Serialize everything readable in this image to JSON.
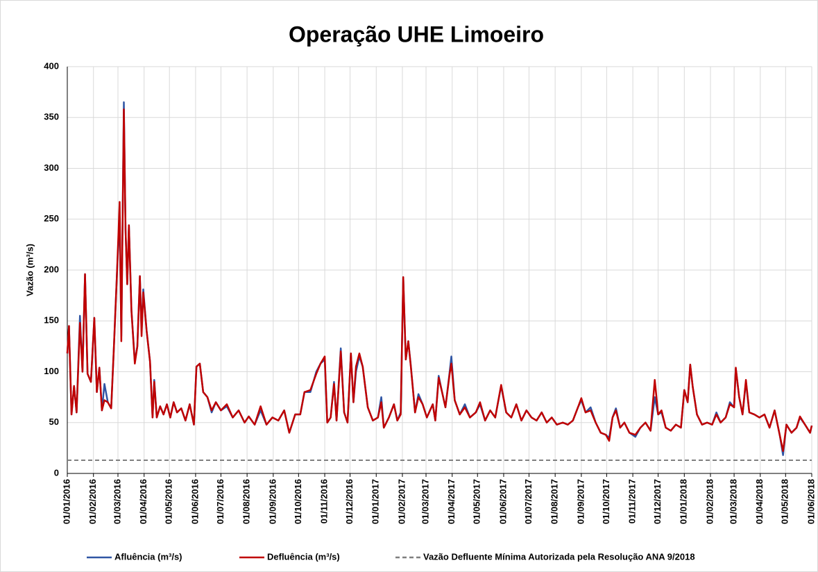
{
  "chart_data": {
    "type": "line",
    "title": "Operação UHE Limoeiro",
    "y_label": "Vazão (m³/s)",
    "ylim": [
      0,
      400
    ],
    "yticks": [
      0,
      50,
      100,
      150,
      200,
      250,
      300,
      350,
      400
    ],
    "xlim": [
      "2016-01-01",
      "2018-06-01"
    ],
    "xticks": [
      {
        "value": "2016-01-01",
        "label": "01/01/2016"
      },
      {
        "value": "2016-02-01",
        "label": "01/02/2016"
      },
      {
        "value": "2016-03-01",
        "label": "01/03/2016"
      },
      {
        "value": "2016-04-01",
        "label": "01/04/2016"
      },
      {
        "value": "2016-05-01",
        "label": "01/05/2016"
      },
      {
        "value": "2016-06-01",
        "label": "01/06/2016"
      },
      {
        "value": "2016-07-01",
        "label": "01/07/2016"
      },
      {
        "value": "2016-08-01",
        "label": "01/08/2016"
      },
      {
        "value": "2016-09-01",
        "label": "01/09/2016"
      },
      {
        "value": "2016-10-01",
        "label": "01/10/2016"
      },
      {
        "value": "2016-11-01",
        "label": "01/11/2016"
      },
      {
        "value": "2016-12-01",
        "label": "01/12/2016"
      },
      {
        "value": "2017-01-01",
        "label": "01/01/2017"
      },
      {
        "value": "2017-02-01",
        "label": "01/02/2017"
      },
      {
        "value": "2017-03-01",
        "label": "01/03/2017"
      },
      {
        "value": "2017-04-01",
        "label": "01/04/2017"
      },
      {
        "value": "2017-05-01",
        "label": "01/05/2017"
      },
      {
        "value": "2017-06-01",
        "label": "01/06/2017"
      },
      {
        "value": "2017-07-01",
        "label": "01/07/2017"
      },
      {
        "value": "2017-08-01",
        "label": "01/08/2017"
      },
      {
        "value": "2017-09-01",
        "label": "01/09/2017"
      },
      {
        "value": "2017-10-01",
        "label": "01/10/2017"
      },
      {
        "value": "2017-11-01",
        "label": "01/11/2017"
      },
      {
        "value": "2017-12-01",
        "label": "01/12/2017"
      },
      {
        "value": "2018-01-01",
        "label": "01/01/2018"
      },
      {
        "value": "2018-02-01",
        "label": "01/02/2018"
      },
      {
        "value": "2018-03-01",
        "label": "01/03/2018"
      },
      {
        "value": "2018-04-01",
        "label": "01/04/2018"
      },
      {
        "value": "2018-05-01",
        "label": "01/05/2018"
      },
      {
        "value": "2018-06-01",
        "label": "01/06/2018"
      }
    ],
    "grid": true,
    "x": [
      "2016-01-01",
      "2016-01-03",
      "2016-01-06",
      "2016-01-09",
      "2016-01-12",
      "2016-01-16",
      "2016-01-19",
      "2016-01-22",
      "2016-01-25",
      "2016-01-29",
      "2016-02-02",
      "2016-02-05",
      "2016-02-08",
      "2016-02-11",
      "2016-02-14",
      "2016-02-18",
      "2016-02-22",
      "2016-02-25",
      "2016-02-29",
      "2016-03-03",
      "2016-03-05",
      "2016-03-08",
      "2016-03-10",
      "2016-03-12",
      "2016-03-14",
      "2016-03-17",
      "2016-03-21",
      "2016-03-24",
      "2016-03-27",
      "2016-03-29",
      "2016-03-31",
      "2016-04-04",
      "2016-04-08",
      "2016-04-11",
      "2016-04-13",
      "2016-04-16",
      "2016-04-20",
      "2016-04-24",
      "2016-04-28",
      "2016-05-02",
      "2016-05-06",
      "2016-05-10",
      "2016-05-15",
      "2016-05-20",
      "2016-05-25",
      "2016-05-30",
      "2016-06-02",
      "2016-06-06",
      "2016-06-10",
      "2016-06-15",
      "2016-06-20",
      "2016-06-25",
      "2016-07-01",
      "2016-07-08",
      "2016-07-15",
      "2016-07-22",
      "2016-07-29",
      "2016-08-03",
      "2016-08-10",
      "2016-08-17",
      "2016-08-24",
      "2016-08-31",
      "2016-09-07",
      "2016-09-14",
      "2016-09-20",
      "2016-09-27",
      "2016-10-03",
      "2016-10-08",
      "2016-10-15",
      "2016-10-22",
      "2016-10-27",
      "2016-11-01",
      "2016-11-04",
      "2016-11-08",
      "2016-11-12",
      "2016-11-15",
      "2016-11-20",
      "2016-11-24",
      "2016-11-28",
      "2016-12-02",
      "2016-12-05",
      "2016-12-08",
      "2016-12-12",
      "2016-12-16",
      "2016-12-22",
      "2016-12-28",
      "2017-01-03",
      "2017-01-07",
      "2017-01-10",
      "2017-01-16",
      "2017-01-22",
      "2017-01-26",
      "2017-01-30",
      "2017-02-02",
      "2017-02-05",
      "2017-02-08",
      "2017-02-11",
      "2017-02-16",
      "2017-02-20",
      "2017-02-25",
      "2017-03-02",
      "2017-03-09",
      "2017-03-12",
      "2017-03-16",
      "2017-03-20",
      "2017-03-24",
      "2017-03-29",
      "2017-03-31",
      "2017-04-04",
      "2017-04-10",
      "2017-04-16",
      "2017-04-22",
      "2017-04-29",
      "2017-05-04",
      "2017-05-10",
      "2017-05-16",
      "2017-05-22",
      "2017-05-29",
      "2017-06-04",
      "2017-06-10",
      "2017-06-16",
      "2017-06-22",
      "2017-06-28",
      "2017-07-04",
      "2017-07-10",
      "2017-07-16",
      "2017-07-22",
      "2017-07-28",
      "2017-08-03",
      "2017-08-10",
      "2017-08-16",
      "2017-08-22",
      "2017-08-28",
      "2017-09-01",
      "2017-09-06",
      "2017-09-12",
      "2017-09-18",
      "2017-09-24",
      "2017-09-30",
      "2017-10-04",
      "2017-10-08",
      "2017-10-12",
      "2017-10-17",
      "2017-10-22",
      "2017-10-28",
      "2017-11-04",
      "2017-11-10",
      "2017-11-16",
      "2017-11-22",
      "2017-11-27",
      "2017-12-01",
      "2017-12-05",
      "2017-12-10",
      "2017-12-16",
      "2017-12-22",
      "2017-12-28",
      "2018-01-01",
      "2018-01-05",
      "2018-01-08",
      "2018-01-11",
      "2018-01-16",
      "2018-01-22",
      "2018-01-28",
      "2018-02-03",
      "2018-02-08",
      "2018-02-13",
      "2018-02-19",
      "2018-02-24",
      "2018-03-01",
      "2018-03-03",
      "2018-03-07",
      "2018-03-11",
      "2018-03-15",
      "2018-03-19",
      "2018-03-25",
      "2018-03-31",
      "2018-04-06",
      "2018-04-12",
      "2018-04-18",
      "2018-04-24",
      "2018-04-28",
      "2018-05-02",
      "2018-05-08",
      "2018-05-14",
      "2018-05-18",
      "2018-05-24",
      "2018-05-30",
      "2018-06-01"
    ],
    "series": [
      {
        "name": "Afluência (m³/s)",
        "color": "#2f55a4",
        "values": [
          118,
          145,
          58,
          86,
          60,
          155,
          100,
          196,
          98,
          90,
          153,
          80,
          104,
          62,
          88,
          70,
          64,
          120,
          200,
          252,
          135,
          365,
          240,
          186,
          244,
          160,
          110,
          125,
          194,
          140,
          181,
          140,
          110,
          55,
          92,
          55,
          66,
          58,
          68,
          55,
          70,
          60,
          64,
          52,
          68,
          48,
          105,
          108,
          80,
          75,
          60,
          70,
          62,
          66,
          55,
          62,
          50,
          56,
          48,
          62,
          48,
          55,
          52,
          62,
          40,
          58,
          58,
          80,
          80,
          100,
          108,
          112,
          50,
          55,
          90,
          52,
          123,
          60,
          50,
          118,
          70,
          100,
          115,
          105,
          65,
          52,
          55,
          75,
          45,
          55,
          68,
          52,
          60,
          193,
          112,
          130,
          106,
          60,
          78,
          68,
          55,
          68,
          52,
          96,
          80,
          65,
          100,
          115,
          72,
          58,
          68,
          55,
          60,
          68,
          52,
          62,
          55,
          86,
          60,
          55,
          68,
          52,
          62,
          55,
          52,
          60,
          50,
          55,
          48,
          50,
          48,
          52,
          65,
          72,
          60,
          65,
          50,
          40,
          38,
          35,
          55,
          64,
          45,
          50,
          40,
          36,
          45,
          50,
          42,
          75,
          58,
          60,
          45,
          42,
          48,
          45,
          82,
          70,
          107,
          85,
          58,
          48,
          50,
          48,
          60,
          50,
          55,
          70,
          65,
          103,
          75,
          58,
          90,
          60,
          58,
          55,
          58,
          45,
          62,
          38,
          18,
          48,
          40,
          45,
          55,
          48,
          40,
          47
        ]
      },
      {
        "name": "Defluência (m³/s)",
        "color": "#c00000",
        "values": [
          118,
          145,
          58,
          86,
          60,
          148,
          100,
          196,
          98,
          90,
          153,
          80,
          104,
          62,
          72,
          70,
          64,
          120,
          200,
          267,
          130,
          358,
          240,
          186,
          244,
          160,
          108,
          125,
          194,
          135,
          178,
          140,
          110,
          55,
          90,
          55,
          66,
          58,
          68,
          55,
          70,
          60,
          64,
          52,
          68,
          48,
          105,
          108,
          80,
          75,
          62,
          70,
          62,
          68,
          55,
          62,
          50,
          56,
          48,
          66,
          48,
          55,
          52,
          62,
          40,
          58,
          58,
          80,
          82,
          98,
          108,
          115,
          50,
          55,
          88,
          52,
          120,
          60,
          50,
          118,
          70,
          105,
          118,
          105,
          65,
          52,
          55,
          70,
          45,
          55,
          68,
          52,
          58,
          193,
          112,
          130,
          105,
          60,
          75,
          68,
          55,
          68,
          52,
          94,
          80,
          65,
          98,
          108,
          72,
          58,
          65,
          55,
          60,
          70,
          52,
          62,
          55,
          87,
          60,
          55,
          68,
          52,
          62,
          55,
          52,
          60,
          50,
          55,
          48,
          50,
          48,
          52,
          65,
          74,
          60,
          62,
          50,
          40,
          38,
          32,
          55,
          62,
          45,
          50,
          40,
          38,
          45,
          50,
          42,
          92,
          58,
          62,
          45,
          42,
          48,
          45,
          82,
          70,
          107,
          85,
          58,
          48,
          50,
          48,
          58,
          50,
          55,
          68,
          65,
          104,
          75,
          58,
          92,
          60,
          58,
          55,
          58,
          45,
          62,
          38,
          22,
          48,
          40,
          45,
          56,
          48,
          40,
          47
        ]
      }
    ],
    "reference_line": {
      "name": "Vazão Defluente Mínima Autorizada pela Resolução ANA 9/2018",
      "value": 13,
      "color": "#7f7f7f"
    }
  }
}
